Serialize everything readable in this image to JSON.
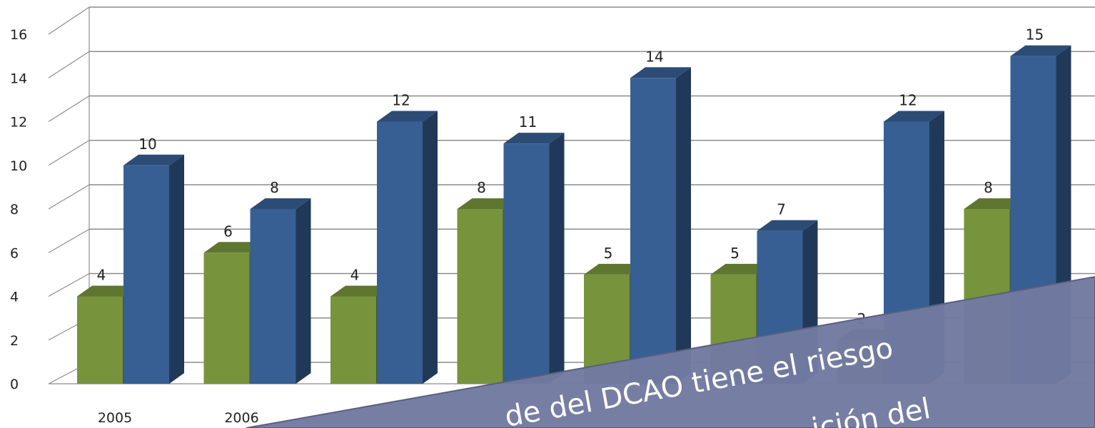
{
  "chart_data": {
    "type": "bar",
    "title": "",
    "xlabel": "",
    "ylabel": "",
    "ylim": [
      0,
      16
    ],
    "yticks": [
      0,
      2,
      4,
      6,
      8,
      10,
      12,
      14,
      16
    ],
    "grid": true,
    "categories": [
      "2005",
      "2006",
      "",
      "",
      "",
      "",
      "",
      ""
    ],
    "series": [
      {
        "color": "#77933c",
        "values": [
          4,
          6,
          4,
          8,
          5,
          5,
          2,
          8
        ],
        "labels": [
          "4",
          "6",
          "4",
          "8",
          "5",
          "5",
          "2",
          "8"
        ]
      },
      {
        "color": "#375f93",
        "values": [
          10,
          8,
          12,
          11,
          14,
          7,
          12,
          15
        ],
        "labels": [
          "10",
          "8",
          "12",
          "11",
          "14",
          "7",
          "12",
          "15"
        ]
      }
    ]
  },
  "overlay": {
    "color": "#727aa0",
    "lines": [
      "de del DCAO  tiene el riesgo",
      "ición del "
    ]
  }
}
